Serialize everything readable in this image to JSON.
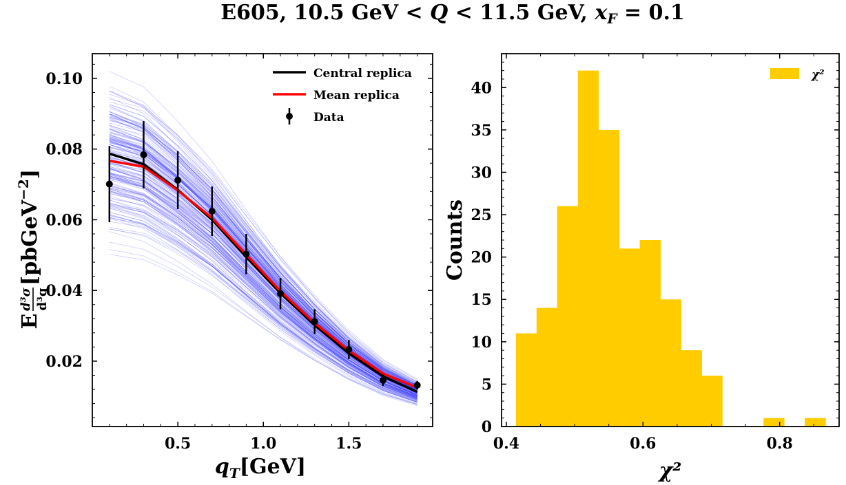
{
  "figure": {
    "title": "E605, 10.5 GeV < Q < 11.5 GeV, x_F = 0.1",
    "title_parts": [
      "E605, 10.5 GeV < ",
      "Q",
      " < 11.5 GeV, ",
      "x",
      "F",
      " = 0.1"
    ]
  },
  "chart_data": [
    {
      "type": "line",
      "panel": "left",
      "xlabel": "q_T[GeV]",
      "xlabel_parts": [
        "q",
        "T",
        "[GeV]"
      ],
      "ylabel": "E d³σ/d³q [pbGeV⁻²]",
      "ylabel_parts": [
        "E",
        "d³σ",
        "d³q",
        "[pbGeV",
        "−2",
        "]"
      ],
      "xlim": [
        0.0,
        1.99
      ],
      "ylim": [
        0.0015,
        0.107
      ],
      "xticks": [
        0.5,
        1.0,
        1.5
      ],
      "xtick_labels": [
        "0.5",
        "1.0",
        "1.5"
      ],
      "yticks": [
        0.02,
        0.04,
        0.06,
        0.08,
        0.1
      ],
      "ytick_labels": [
        "0.02",
        "0.04",
        "0.06",
        "0.08",
        "0.10"
      ],
      "legend": {
        "placement": "top-right",
        "entries": [
          "Central replica",
          "Mean replica",
          "Data"
        ]
      },
      "x": [
        0.1,
        0.3,
        0.5,
        0.7,
        0.9,
        1.1,
        1.3,
        1.5,
        1.7,
        1.9
      ],
      "series": [
        {
          "name": "Central replica",
          "color": "#000000",
          "values": [
            0.0787,
            0.0757,
            0.0685,
            0.06,
            0.0495,
            0.0392,
            0.0302,
            0.0222,
            0.0157,
            0.0113
          ]
        },
        {
          "name": "Mean replica",
          "color": "#ff0000",
          "values": [
            0.0767,
            0.075,
            0.0683,
            0.0605,
            0.0502,
            0.0398,
            0.0308,
            0.023,
            0.0165,
            0.0125
          ]
        }
      ],
      "data_points": {
        "name": "Data",
        "color": "#000000",
        "y": [
          0.0701,
          0.0784,
          0.0712,
          0.0624,
          0.0503,
          0.0391,
          0.0312,
          0.0233,
          0.0146,
          0.0132
        ],
        "err": [
          0.0108,
          0.0095,
          0.0082,
          0.007,
          0.0057,
          0.0044,
          0.0035,
          0.0027,
          0.0016,
          0.0012
        ]
      },
      "replicas": {
        "count": 200,
        "color": "#3333ff",
        "scale_range": [
          0.62,
          1.32
        ],
        "comment_free": true
      }
    },
    {
      "type": "bar",
      "panel": "right",
      "xlabel": "χ²",
      "ylabel": "Counts",
      "xlim": [
        0.393,
        0.887
      ],
      "ylim": [
        0,
        44
      ],
      "xticks": [
        0.4,
        0.6,
        0.8
      ],
      "xtick_labels": [
        "0.4",
        "0.6",
        "0.8"
      ],
      "yticks": [
        0,
        5,
        10,
        15,
        20,
        25,
        30,
        35,
        40
      ],
      "ytick_labels": [
        "0",
        "5",
        "10",
        "15",
        "20",
        "25",
        "30",
        "35",
        "40"
      ],
      "legend": {
        "placement": "top-right",
        "entries": [
          "χ²"
        ]
      },
      "color": "#ffcc00",
      "bin_start": 0.414,
      "bin_width": 0.0302,
      "values": [
        11,
        14,
        26,
        42,
        35,
        21,
        22,
        15,
        9,
        6,
        0,
        0,
        1,
        0,
        1
      ]
    }
  ]
}
